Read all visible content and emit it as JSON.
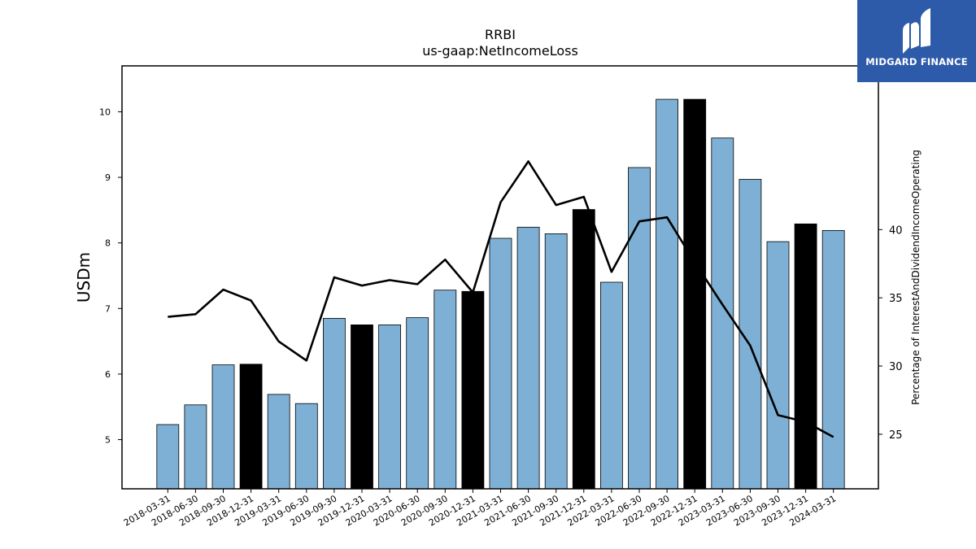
{
  "chart_data": {
    "type": "bar",
    "title": "RRBI",
    "subtitle": "us-gaap:NetIncomeLoss",
    "ylabel": "USDm",
    "y2label": "Percentage of InterestAndDividendIncomeOperating",
    "ylim": [
      4.25,
      10.7
    ],
    "y2lim": [
      21.0,
      52.0
    ],
    "yticks": [
      5,
      6,
      7,
      8,
      9,
      10
    ],
    "y2ticks": [
      25,
      30,
      35,
      40
    ],
    "categories": [
      "2018-03-31",
      "2018-06-30",
      "2018-09-30",
      "2018-12-31",
      "2019-03-31",
      "2019-06-30",
      "2019-09-30",
      "2019-12-31",
      "2020-03-31",
      "2020-06-30",
      "2020-09-30",
      "2020-12-31",
      "2021-03-31",
      "2021-06-30",
      "2021-09-30",
      "2021-12-31",
      "2022-03-31",
      "2022-06-30",
      "2022-09-30",
      "2022-12-31",
      "2023-03-31",
      "2023-06-30",
      "2023-09-30",
      "2023-12-31",
      "2024-03-31"
    ],
    "series": [
      {
        "kind": "bar",
        "values": [
          5.23,
          5.53,
          6.14,
          6.15,
          5.69,
          5.55,
          6.85,
          6.75,
          6.75,
          6.86,
          7.28,
          7.26,
          8.07,
          8.24,
          8.14,
          8.51,
          7.4,
          9.15,
          10.19,
          10.19,
          9.6,
          8.97,
          8.02,
          8.29,
          8.19
        ],
        "highlight": [
          false,
          false,
          false,
          true,
          false,
          false,
          false,
          true,
          false,
          false,
          false,
          true,
          false,
          false,
          false,
          true,
          false,
          false,
          false,
          true,
          false,
          false,
          false,
          true,
          false
        ],
        "color": "#7eb0d5",
        "highlight_color": "#000000"
      },
      {
        "kind": "line",
        "axis": "right",
        "values": [
          33.6,
          33.8,
          35.6,
          34.8,
          31.8,
          30.4,
          36.5,
          35.9,
          36.3,
          36.0,
          37.8,
          35.4,
          42.0,
          45.0,
          41.8,
          42.4,
          36.9,
          40.6,
          40.9,
          37.6,
          34.5,
          31.5,
          26.4,
          25.9,
          24.8
        ],
        "color": "#000000"
      }
    ]
  },
  "logo": {
    "text": "MIDGARD FINANCE",
    "color": "#2d5ba9"
  }
}
